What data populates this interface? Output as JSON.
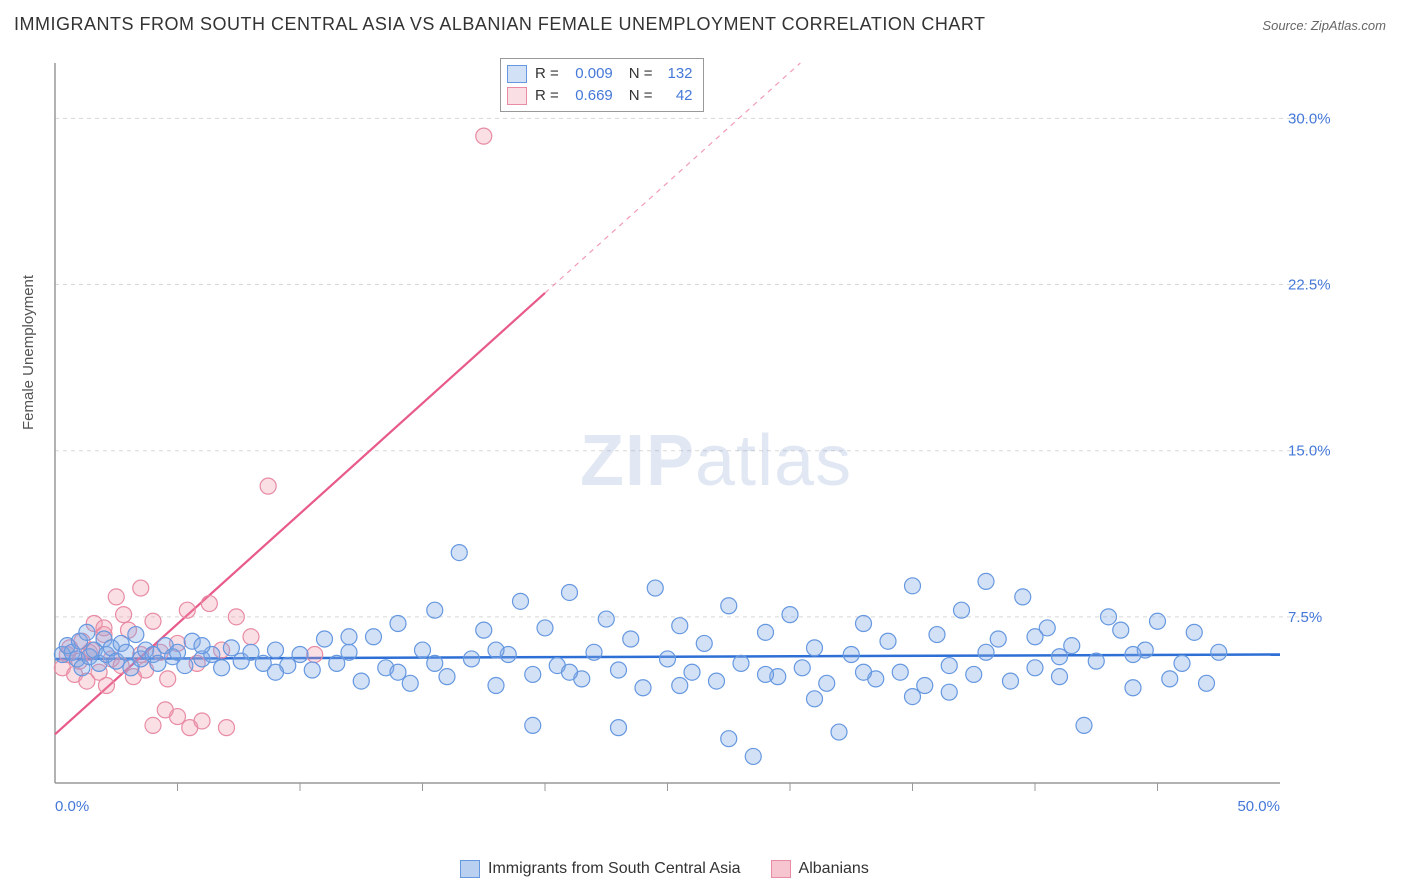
{
  "title": "IMMIGRANTS FROM SOUTH CENTRAL ASIA VS ALBANIAN FEMALE UNEMPLOYMENT CORRELATION CHART",
  "source_label": "Source:",
  "source_name": "ZipAtlas.com",
  "ylabel": "Female Unemployment",
  "watermark_a": "ZIP",
  "watermark_b": "atlas",
  "chart": {
    "type": "scatter",
    "xlim": [
      0,
      50
    ],
    "ylim": [
      0,
      32.5
    ],
    "xtick_labels": [
      {
        "v": 0,
        "label": "0.0%"
      },
      {
        "v": 50,
        "label": "50.0%"
      }
    ],
    "xtick_minor": [
      5,
      10,
      15,
      20,
      25,
      30,
      35,
      40,
      45
    ],
    "ytick_labels": [
      {
        "v": 7.5,
        "label": "7.5%"
      },
      {
        "v": 15.0,
        "label": "15.0%"
      },
      {
        "v": 22.5,
        "label": "22.5%"
      },
      {
        "v": 30.0,
        "label": "30.0%"
      }
    ],
    "background_color": "#ffffff",
    "grid_color": "#d8d8d8",
    "axis_color": "#999999",
    "tick_label_color": "#4478d8",
    "marker_radius": 8,
    "series": [
      {
        "name": "Immigrants from South Central Asia",
        "color_fill": "rgba(130,170,230,0.35)",
        "color_stroke": "#6698e0",
        "trend_color": "#2e6fd6",
        "trend_width": 2.5,
        "trend": {
          "x1": 0,
          "y1": 5.6,
          "x2": 50,
          "y2": 5.8,
          "x_solid_end": 50
        },
        "R": "0.009",
        "N": "132",
        "points": [
          [
            0.3,
            5.8
          ],
          [
            0.5,
            6.2
          ],
          [
            0.7,
            5.9
          ],
          [
            0.9,
            5.6
          ],
          [
            1.0,
            6.4
          ],
          [
            1.1,
            5.2
          ],
          [
            1.3,
            6.8
          ],
          [
            1.4,
            5.7
          ],
          [
            1.6,
            6.0
          ],
          [
            1.8,
            5.4
          ],
          [
            2.0,
            6.5
          ],
          [
            2.1,
            5.8
          ],
          [
            2.3,
            6.1
          ],
          [
            2.5,
            5.5
          ],
          [
            2.7,
            6.3
          ],
          [
            2.9,
            5.9
          ],
          [
            3.1,
            5.2
          ],
          [
            3.3,
            6.7
          ],
          [
            3.5,
            5.6
          ],
          [
            3.7,
            6.0
          ],
          [
            4.0,
            5.8
          ],
          [
            4.2,
            5.4
          ],
          [
            4.5,
            6.2
          ],
          [
            4.8,
            5.7
          ],
          [
            5.0,
            5.9
          ],
          [
            5.3,
            5.3
          ],
          [
            5.6,
            6.4
          ],
          [
            6.0,
            5.6
          ],
          [
            6.4,
            5.8
          ],
          [
            6.8,
            5.2
          ],
          [
            7.2,
            6.1
          ],
          [
            7.6,
            5.5
          ],
          [
            8.0,
            5.9
          ],
          [
            8.5,
            5.4
          ],
          [
            9.0,
            6.0
          ],
          [
            9.5,
            5.3
          ],
          [
            10.0,
            5.8
          ],
          [
            10.5,
            5.1
          ],
          [
            11.0,
            6.5
          ],
          [
            11.5,
            5.4
          ],
          [
            12.0,
            5.9
          ],
          [
            12.5,
            4.6
          ],
          [
            13.0,
            6.6
          ],
          [
            13.5,
            5.2
          ],
          [
            14.0,
            7.2
          ],
          [
            14.5,
            4.5
          ],
          [
            15.0,
            6.0
          ],
          [
            15.5,
            7.8
          ],
          [
            16.0,
            4.8
          ],
          [
            16.5,
            10.4
          ],
          [
            17.0,
            5.6
          ],
          [
            17.5,
            6.9
          ],
          [
            18.0,
            4.4
          ],
          [
            18.5,
            5.8
          ],
          [
            19.0,
            8.2
          ],
          [
            19.5,
            4.9
          ],
          [
            20.0,
            7.0
          ],
          [
            20.5,
            5.3
          ],
          [
            21.0,
            8.6
          ],
          [
            21.5,
            4.7
          ],
          [
            22.0,
            5.9
          ],
          [
            22.5,
            7.4
          ],
          [
            23.0,
            5.1
          ],
          [
            23.5,
            6.5
          ],
          [
            24.0,
            4.3
          ],
          [
            24.5,
            8.8
          ],
          [
            25.0,
            5.6
          ],
          [
            25.5,
            7.1
          ],
          [
            26.0,
            5.0
          ],
          [
            26.5,
            6.3
          ],
          [
            27.0,
            4.6
          ],
          [
            27.5,
            8.0
          ],
          [
            28.0,
            5.4
          ],
          [
            28.5,
            1.2
          ],
          [
            29.0,
            6.8
          ],
          [
            29.5,
            4.8
          ],
          [
            30.0,
            7.6
          ],
          [
            30.5,
            5.2
          ],
          [
            31.0,
            6.1
          ],
          [
            31.5,
            4.5
          ],
          [
            32.0,
            2.3
          ],
          [
            32.5,
            5.8
          ],
          [
            33.0,
            7.2
          ],
          [
            33.5,
            4.7
          ],
          [
            34.0,
            6.4
          ],
          [
            34.5,
            5.0
          ],
          [
            35.0,
            8.9
          ],
          [
            35.5,
            4.4
          ],
          [
            36.0,
            6.7
          ],
          [
            36.5,
            5.3
          ],
          [
            37.0,
            7.8
          ],
          [
            37.5,
            4.9
          ],
          [
            38.0,
            5.9
          ],
          [
            38.5,
            6.5
          ],
          [
            39.0,
            4.6
          ],
          [
            39.5,
            8.4
          ],
          [
            40.0,
            5.2
          ],
          [
            40.5,
            7.0
          ],
          [
            41.0,
            4.8
          ],
          [
            41.5,
            6.2
          ],
          [
            42.0,
            2.6
          ],
          [
            42.5,
            5.5
          ],
          [
            43.0,
            7.5
          ],
          [
            43.5,
            6.9
          ],
          [
            44.0,
            4.3
          ],
          [
            44.5,
            6.0
          ],
          [
            45.0,
            7.3
          ],
          [
            45.5,
            4.7
          ],
          [
            46.0,
            5.4
          ],
          [
            46.5,
            6.8
          ],
          [
            47.0,
            4.5
          ],
          [
            47.5,
            5.9
          ],
          [
            27.5,
            2.0
          ],
          [
            23.0,
            2.5
          ],
          [
            19.5,
            2.6
          ],
          [
            14.0,
            5.0
          ],
          [
            35.0,
            3.9
          ],
          [
            38.0,
            9.1
          ],
          [
            41.0,
            5.7
          ],
          [
            18.0,
            6.0
          ],
          [
            31.0,
            3.8
          ],
          [
            25.5,
            4.4
          ],
          [
            29.0,
            4.9
          ],
          [
            40.0,
            6.6
          ],
          [
            36.5,
            4.1
          ],
          [
            33.0,
            5.0
          ],
          [
            44.0,
            5.8
          ],
          [
            15.5,
            5.4
          ],
          [
            21.0,
            5.0
          ],
          [
            12.0,
            6.6
          ],
          [
            9.0,
            5.0
          ],
          [
            6.0,
            6.2
          ]
        ]
      },
      {
        "name": "Albanians",
        "color_fill": "rgba(240,150,170,0.30)",
        "color_stroke": "#e88ba4",
        "trend_color": "#e85a8a",
        "trend_width": 2.2,
        "trend": {
          "x1": 0,
          "y1": 2.2,
          "x2": 50,
          "y2": 52.0,
          "x_solid_end": 20
        },
        "R": "0.669",
        "N": "42",
        "points": [
          [
            0.3,
            5.2
          ],
          [
            0.5,
            5.8
          ],
          [
            0.6,
            6.1
          ],
          [
            0.8,
            4.9
          ],
          [
            1.0,
            5.5
          ],
          [
            1.1,
            6.4
          ],
          [
            1.3,
            4.6
          ],
          [
            1.4,
            5.9
          ],
          [
            1.6,
            7.2
          ],
          [
            1.8,
            5.0
          ],
          [
            2.0,
            6.7
          ],
          [
            2.1,
            4.4
          ],
          [
            2.3,
            5.6
          ],
          [
            2.5,
            8.4
          ],
          [
            2.7,
            5.3
          ],
          [
            3.0,
            6.9
          ],
          [
            3.2,
            4.8
          ],
          [
            3.5,
            8.8
          ],
          [
            3.7,
            5.1
          ],
          [
            4.0,
            7.3
          ],
          [
            4.3,
            5.9
          ],
          [
            4.6,
            4.7
          ],
          [
            5.0,
            6.3
          ],
          [
            5.4,
            7.8
          ],
          [
            5.8,
            5.4
          ],
          [
            6.3,
            8.1
          ],
          [
            6.8,
            6.0
          ],
          [
            7.4,
            7.5
          ],
          [
            8.0,
            6.6
          ],
          [
            8.7,
            13.4
          ],
          [
            5.0,
            3.0
          ],
          [
            5.5,
            2.5
          ],
          [
            6.0,
            2.8
          ],
          [
            4.5,
            3.3
          ],
          [
            4.0,
            2.6
          ],
          [
            3.5,
            5.8
          ],
          [
            7.0,
            2.5
          ],
          [
            10.6,
            5.8
          ],
          [
            2.0,
            7.0
          ],
          [
            2.8,
            7.6
          ],
          [
            1.5,
            6.0
          ],
          [
            17.5,
            29.2
          ]
        ]
      }
    ]
  },
  "bottom_legend": [
    {
      "label": "Immigrants from South Central Asia",
      "fill": "rgba(130,170,230,0.55)",
      "stroke": "#6698e0"
    },
    {
      "label": "Albanians",
      "fill": "rgba(240,150,170,0.55)",
      "stroke": "#e88ba4"
    }
  ]
}
